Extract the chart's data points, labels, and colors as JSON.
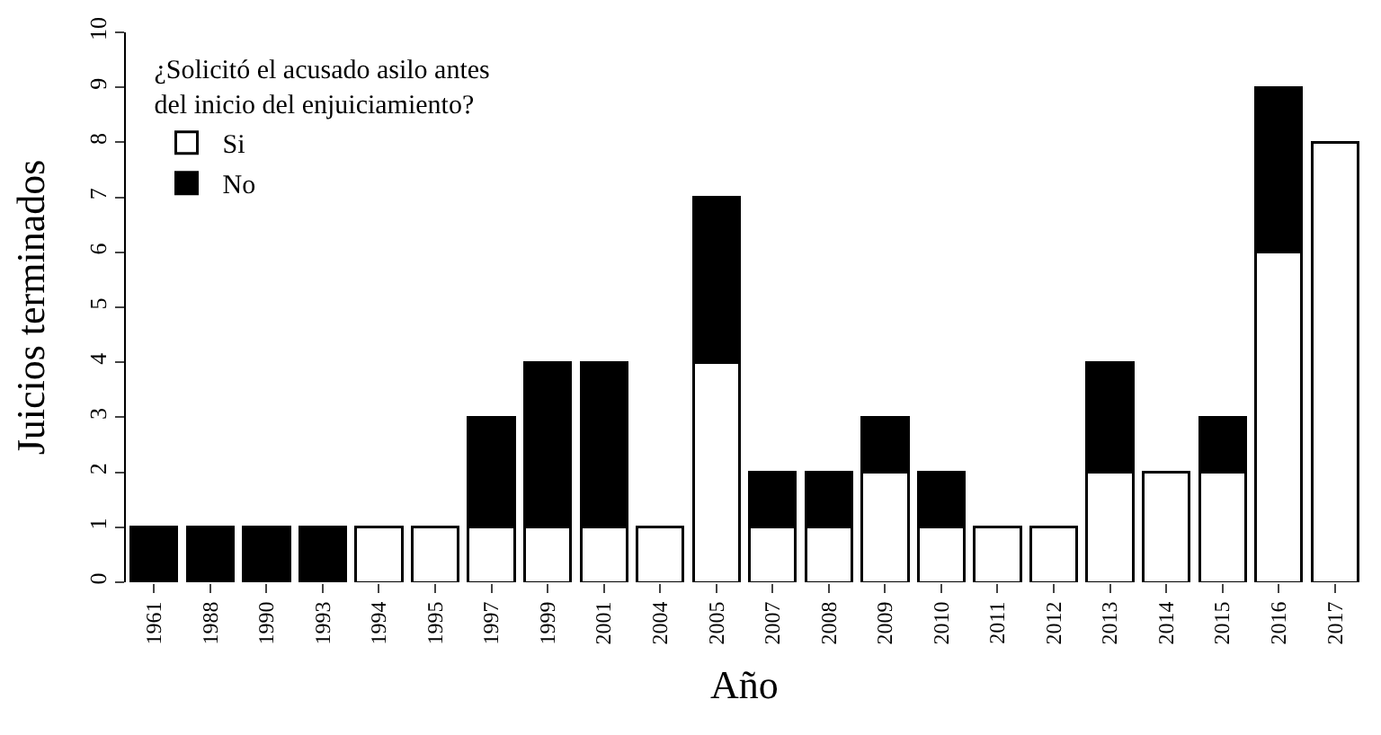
{
  "chart_data": {
    "type": "bar",
    "stacked": true,
    "xlabel": "Año",
    "ylabel": "Juicios terminados",
    "legend_title": "¿Solicitó el acusado asilo antes del inicio del enjuiciamiento?",
    "categories": [
      "1961",
      "1988",
      "1990",
      "1993",
      "1994",
      "1995",
      "1997",
      "1999",
      "2001",
      "2004",
      "2005",
      "2007",
      "2008",
      "2009",
      "2010",
      "2011",
      "2012",
      "2013",
      "2014",
      "2015",
      "2016",
      "2017"
    ],
    "series": [
      {
        "name": "Si",
        "color": "#ffffff",
        "values": [
          0,
          0,
          0,
          0,
          1,
          1,
          1,
          1,
          1,
          1,
          4,
          1,
          1,
          2,
          1,
          1,
          1,
          2,
          2,
          2,
          6,
          8
        ]
      },
      {
        "name": "No",
        "color": "#000000",
        "values": [
          1,
          1,
          1,
          1,
          0,
          0,
          2,
          3,
          3,
          0,
          3,
          1,
          1,
          1,
          1,
          0,
          0,
          2,
          0,
          1,
          3,
          0
        ]
      }
    ],
    "ylim": [
      0,
      10
    ],
    "yticks": [
      0,
      1,
      2,
      3,
      4,
      5,
      6,
      7,
      8,
      9,
      10
    ],
    "legend": "top left"
  }
}
